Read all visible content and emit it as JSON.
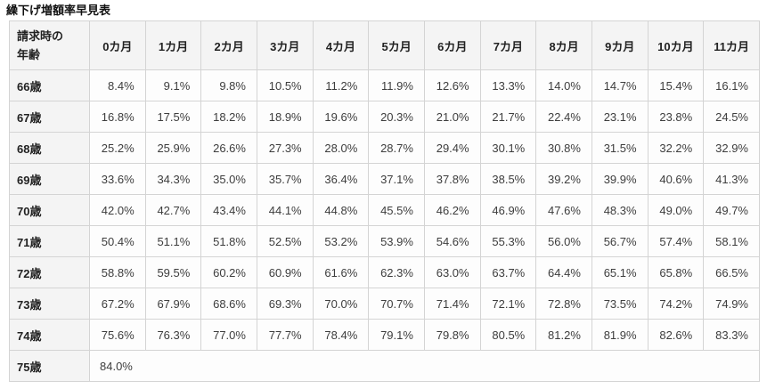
{
  "page": {
    "title": "繰下げ増額率早見表"
  },
  "table": {
    "corner_header": "請求時の\n年齢",
    "month_headers": [
      "0カ月",
      "1カ月",
      "2カ月",
      "3カ月",
      "4カ月",
      "5カ月",
      "6カ月",
      "7カ月",
      "8カ月",
      "9カ月",
      "10カ月",
      "11カ月"
    ],
    "rows": [
      {
        "age": "66歳",
        "values": [
          "8.4%",
          "9.1%",
          "9.8%",
          "10.5%",
          "11.2%",
          "11.9%",
          "12.6%",
          "13.3%",
          "14.0%",
          "14.7%",
          "15.4%",
          "16.1%"
        ]
      },
      {
        "age": "67歳",
        "values": [
          "16.8%",
          "17.5%",
          "18.2%",
          "18.9%",
          "19.6%",
          "20.3%",
          "21.0%",
          "21.7%",
          "22.4%",
          "23.1%",
          "23.8%",
          "24.5%"
        ]
      },
      {
        "age": "68歳",
        "values": [
          "25.2%",
          "25.9%",
          "26.6%",
          "27.3%",
          "28.0%",
          "28.7%",
          "29.4%",
          "30.1%",
          "30.8%",
          "31.5%",
          "32.2%",
          "32.9%"
        ]
      },
      {
        "age": "69歳",
        "values": [
          "33.6%",
          "34.3%",
          "35.0%",
          "35.7%",
          "36.4%",
          "37.1%",
          "37.8%",
          "38.5%",
          "39.2%",
          "39.9%",
          "40.6%",
          "41.3%"
        ]
      },
      {
        "age": "70歳",
        "values": [
          "42.0%",
          "42.7%",
          "43.4%",
          "44.1%",
          "44.8%",
          "45.5%",
          "46.2%",
          "46.9%",
          "47.6%",
          "48.3%",
          "49.0%",
          "49.7%"
        ]
      },
      {
        "age": "71歳",
        "values": [
          "50.4%",
          "51.1%",
          "51.8%",
          "52.5%",
          "53.2%",
          "53.9%",
          "54.6%",
          "55.3%",
          "56.0%",
          "56.7%",
          "57.4%",
          "58.1%"
        ]
      },
      {
        "age": "72歳",
        "values": [
          "58.8%",
          "59.5%",
          "60.2%",
          "60.9%",
          "61.6%",
          "62.3%",
          "63.0%",
          "63.7%",
          "64.4%",
          "65.1%",
          "65.8%",
          "66.5%"
        ]
      },
      {
        "age": "73歳",
        "values": [
          "67.2%",
          "67.9%",
          "68.6%",
          "69.3%",
          "70.0%",
          "70.7%",
          "71.4%",
          "72.1%",
          "72.8%",
          "73.5%",
          "74.2%",
          "74.9%"
        ]
      },
      {
        "age": "74歳",
        "values": [
          "75.6%",
          "76.3%",
          "77.0%",
          "77.7%",
          "78.4%",
          "79.1%",
          "79.8%",
          "80.5%",
          "81.2%",
          "81.9%",
          "82.6%",
          "83.3%"
        ]
      },
      {
        "age": "75歳",
        "values": [
          "84.0%"
        ]
      }
    ],
    "colors": {
      "header_bg": "#f4f4f4",
      "cell_bg": "#fdfdfd",
      "border": "#d4d4d4",
      "header_text": "#222222",
      "value_text": "#3d3d3d"
    }
  }
}
